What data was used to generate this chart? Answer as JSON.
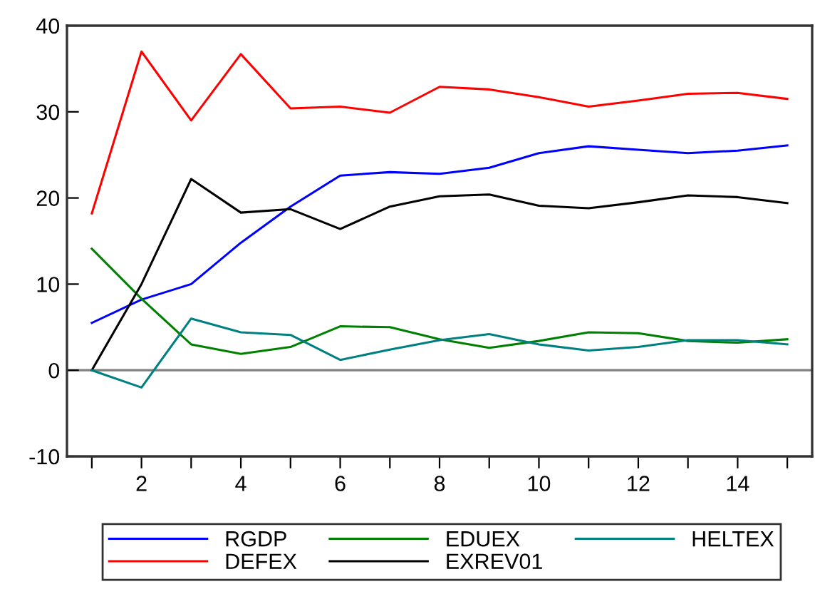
{
  "chart_data": {
    "type": "line",
    "x": [
      1,
      2,
      3,
      4,
      5,
      6,
      7,
      8,
      9,
      10,
      11,
      12,
      13,
      14,
      15
    ],
    "series": [
      {
        "name": "RGDP",
        "color": "#0000ff",
        "values": [
          5.5,
          8.2,
          10,
          14.8,
          19,
          22.6,
          23,
          22.8,
          23.5,
          25.2,
          26,
          25.6,
          25.2,
          25.5,
          26.1
        ]
      },
      {
        "name": "DEFEX",
        "color": "#ff0000",
        "values": [
          18.2,
          37,
          29,
          36.7,
          30.4,
          30.6,
          29.9,
          32.9,
          32.6,
          31.7,
          30.6,
          31.3,
          32.1,
          32.2,
          31.5
        ]
      },
      {
        "name": "EDUEX",
        "color": "#008000",
        "values": [
          14.1,
          8.3,
          3,
          1.9,
          2.7,
          5.1,
          5,
          3.6,
          2.6,
          3.4,
          4.4,
          4.3,
          3.4,
          3.2,
          3.6
        ]
      },
      {
        "name": "EXREV01",
        "color": "#000000",
        "values": [
          0,
          10,
          22.2,
          18.3,
          18.7,
          16.4,
          19,
          20.2,
          20.4,
          19.1,
          18.8,
          19.5,
          20.3,
          20.1,
          19.4
        ]
      },
      {
        "name": "HELTEX",
        "color": "#008080",
        "values": [
          0,
          -2,
          6,
          4.4,
          4.1,
          1.2,
          2.4,
          3.5,
          4.2,
          3.0,
          2.3,
          2.7,
          3.5,
          3.5,
          3.0
        ]
      }
    ],
    "xlim": [
      0.5,
      15.5
    ],
    "xticks": [
      {
        "value": 1,
        "label": null
      },
      2,
      {
        "value": 3,
        "label": null
      },
      4,
      {
        "value": 5,
        "label": null
      },
      6,
      {
        "value": 7,
        "label": null
      },
      8,
      {
        "value": 9,
        "label": null
      },
      10,
      {
        "value": 11,
        "label": null
      },
      12,
      {
        "value": 13,
        "label": null
      },
      14,
      {
        "value": 15,
        "label": null
      }
    ],
    "ylim": [
      -10,
      40
    ],
    "yticks": [
      -10,
      0,
      10,
      20,
      30,
      40
    ],
    "ref_lines": [
      {
        "axis": "y",
        "value": 0,
        "color": "#808080"
      }
    ],
    "legend": "bottom",
    "grid": false,
    "marker": "none",
    "line_style": "solid"
  }
}
